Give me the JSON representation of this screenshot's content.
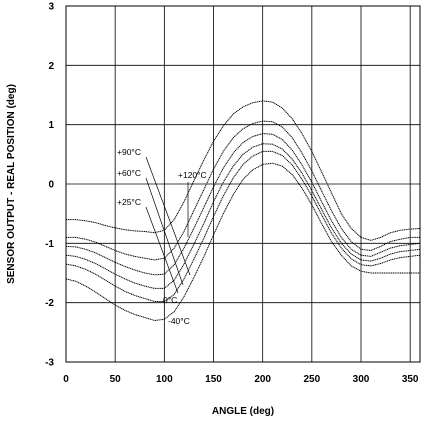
{
  "chart_data": {
    "type": "line",
    "xlabel": "ANGLE (deg)",
    "ylabel": "SENSOR OUTPUT - REAL POSITION (deg)",
    "xlim": [
      0,
      360
    ],
    "ylim": [
      -3,
      3
    ],
    "x_ticks": [
      "0",
      "50",
      "100",
      "150",
      "200",
      "250",
      "300",
      "350"
    ],
    "y_ticks": [
      "-3",
      "-2",
      "-1",
      "0",
      "1",
      "2",
      "3"
    ],
    "grid": true,
    "x": [
      0,
      10,
      20,
      30,
      40,
      50,
      60,
      70,
      80,
      90,
      100,
      110,
      120,
      130,
      140,
      150,
      160,
      170,
      180,
      190,
      200,
      210,
      220,
      230,
      240,
      250,
      260,
      270,
      280,
      290,
      300,
      310,
      320,
      330,
      340,
      350,
      360
    ],
    "series": [
      {
        "name": "+120°C",
        "values": [
          -0.6,
          -0.6,
          -0.62,
          -0.65,
          -0.7,
          -0.74,
          -0.77,
          -0.79,
          -0.8,
          -0.82,
          -0.78,
          -0.6,
          -0.3,
          0.05,
          0.4,
          0.72,
          0.98,
          1.18,
          1.3,
          1.37,
          1.4,
          1.38,
          1.28,
          1.1,
          0.85,
          0.55,
          0.2,
          -0.15,
          -0.5,
          -0.75,
          -0.9,
          -0.95,
          -0.9,
          -0.82,
          -0.78,
          -0.76,
          -0.75
        ]
      },
      {
        "name": "+90°C",
        "values": [
          -0.9,
          -0.9,
          -0.93,
          -0.98,
          -1.05,
          -1.12,
          -1.18,
          -1.22,
          -1.25,
          -1.28,
          -1.25,
          -1.08,
          -0.8,
          -0.45,
          -0.1,
          0.25,
          0.55,
          0.78,
          0.93,
          1.02,
          1.06,
          1.05,
          0.96,
          0.78,
          0.52,
          0.22,
          -0.12,
          -0.45,
          -0.75,
          -0.97,
          -1.1,
          -1.12,
          -1.05,
          -0.97,
          -0.93,
          -0.9,
          -0.9
        ]
      },
      {
        "name": "+60°C",
        "values": [
          -1.05,
          -1.06,
          -1.1,
          -1.16,
          -1.24,
          -1.32,
          -1.39,
          -1.45,
          -1.5,
          -1.53,
          -1.52,
          -1.36,
          -1.08,
          -0.75,
          -0.4,
          -0.05,
          0.27,
          0.52,
          0.7,
          0.8,
          0.85,
          0.84,
          0.75,
          0.57,
          0.32,
          0.03,
          -0.3,
          -0.62,
          -0.9,
          -1.1,
          -1.2,
          -1.22,
          -1.15,
          -1.08,
          -1.04,
          -1.02,
          -1.0
        ]
      },
      {
        "name": "+25°C",
        "values": [
          -1.2,
          -1.22,
          -1.27,
          -1.34,
          -1.43,
          -1.52,
          -1.6,
          -1.67,
          -1.72,
          -1.76,
          -1.76,
          -1.62,
          -1.35,
          -1.02,
          -0.67,
          -0.3,
          0.03,
          0.3,
          0.5,
          0.62,
          0.68,
          0.67,
          0.59,
          0.42,
          0.18,
          -0.11,
          -0.43,
          -0.74,
          -1.0,
          -1.18,
          -1.28,
          -1.3,
          -1.25,
          -1.18,
          -1.14,
          -1.12,
          -1.1
        ]
      },
      {
        "name": "0°C",
        "values": [
          -1.35,
          -1.38,
          -1.44,
          -1.52,
          -1.62,
          -1.72,
          -1.81,
          -1.88,
          -1.93,
          -1.98,
          -1.98,
          -1.86,
          -1.6,
          -1.27,
          -0.92,
          -0.55,
          -0.2,
          0.1,
          0.33,
          0.47,
          0.55,
          0.55,
          0.48,
          0.32,
          0.08,
          -0.2,
          -0.52,
          -0.83,
          -1.08,
          -1.26,
          -1.36,
          -1.38,
          -1.34,
          -1.28,
          -1.24,
          -1.22,
          -1.2
        ]
      },
      {
        "name": "-40°C",
        "values": [
          -1.6,
          -1.64,
          -1.72,
          -1.82,
          -1.93,
          -2.04,
          -2.13,
          -2.2,
          -2.25,
          -2.3,
          -2.28,
          -2.15,
          -1.9,
          -1.58,
          -1.23,
          -0.86,
          -0.5,
          -0.18,
          0.08,
          0.24,
          0.33,
          0.35,
          0.3,
          0.16,
          -0.07,
          -0.35,
          -0.67,
          -0.97,
          -1.2,
          -1.38,
          -1.47,
          -1.5,
          -1.5,
          -1.5,
          -1.5,
          -1.5,
          -1.5
        ]
      }
    ]
  }
}
